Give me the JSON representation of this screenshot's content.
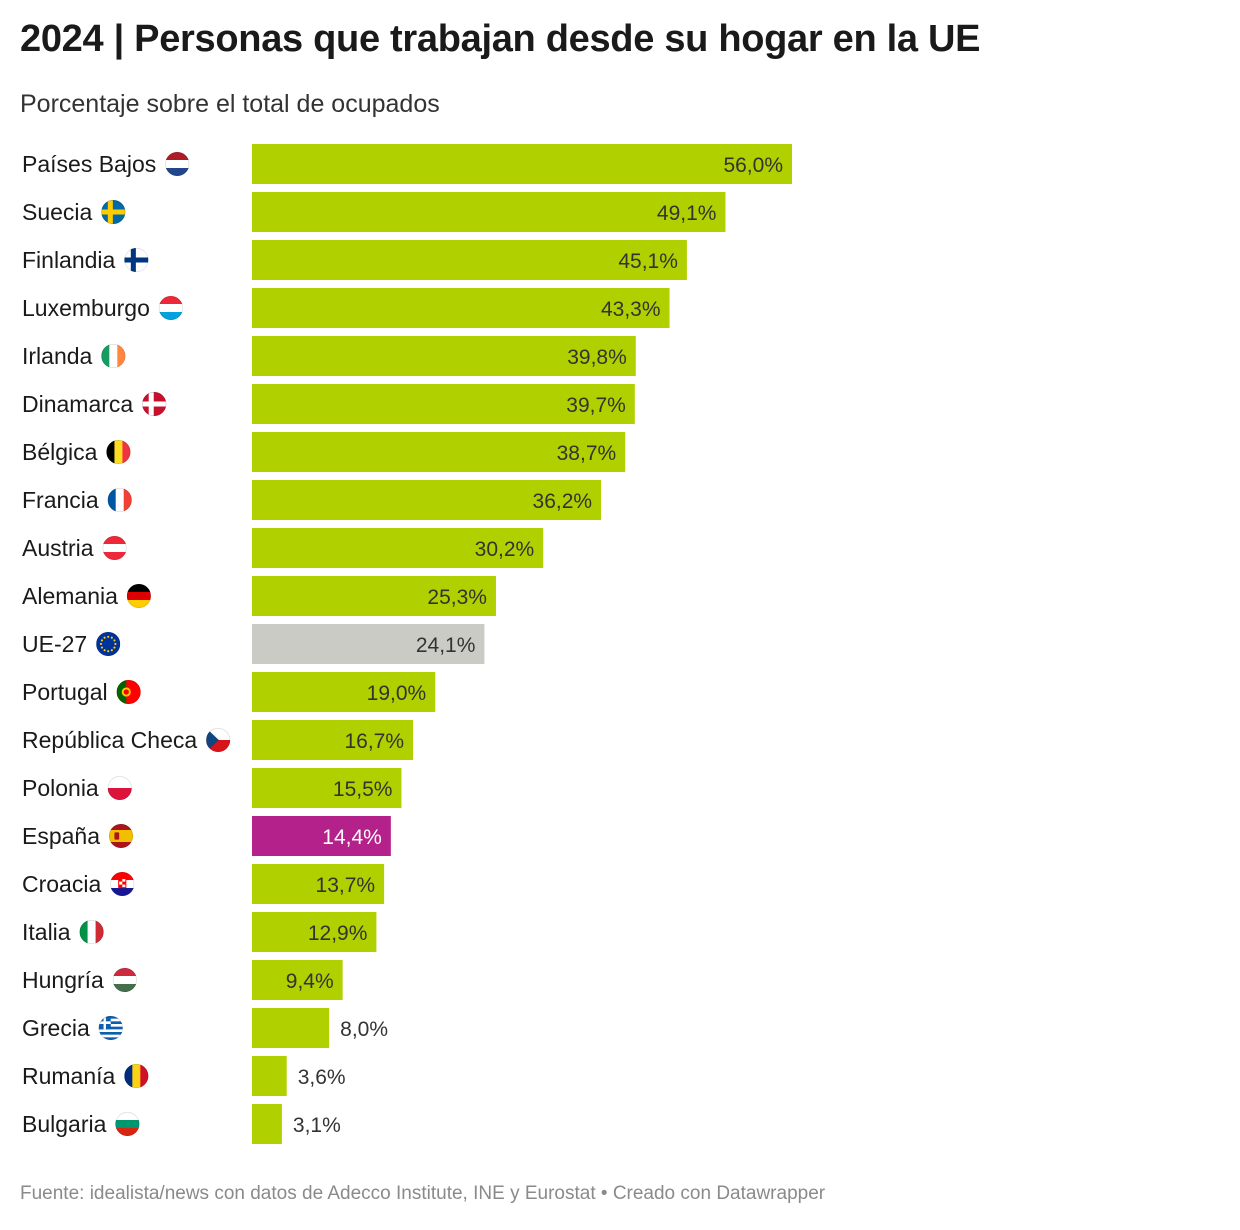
{
  "header": {
    "title": "2024 | Personas que trabajan desde su hogar en la UE",
    "subtitle": "Porcentaje sobre el total de ocupados"
  },
  "footer": {
    "source": "Fuente: idealista/news con datos de Adecco Institute, INE y Eurostat • Creado con Datawrapper"
  },
  "colors": {
    "default_bar": "#b0d000",
    "average_bar": "#cbcbc6",
    "highlight_bar": "#b5218a",
    "value_text": "#333333",
    "highlight_value_text": "#ffffff"
  },
  "chart_data": {
    "type": "bar",
    "orientation": "horizontal",
    "title": "2024 | Personas que trabajan desde su hogar en la UE",
    "subtitle": "Porcentaje sobre el total de ocupados",
    "xlim": [
      0,
      56
    ],
    "grid": false,
    "legend": "none",
    "categories": [
      "Países Bajos",
      "Suecia",
      "Finlandia",
      "Luxemburgo",
      "Irlanda",
      "Dinamarca",
      "Bélgica",
      "Francia",
      "Austria",
      "Alemania",
      "UE-27",
      "Portugal",
      "República Checa",
      "Polonia",
      "España",
      "Croacia",
      "Italia",
      "Hungría",
      "Grecia",
      "Rumanía",
      "Bulgaria"
    ],
    "values": [
      56.0,
      49.1,
      45.1,
      43.3,
      39.8,
      39.7,
      38.7,
      36.2,
      30.2,
      25.3,
      24.1,
      19.0,
      16.7,
      15.5,
      14.4,
      13.7,
      12.9,
      9.4,
      8.0,
      3.6,
      3.1
    ],
    "value_labels": [
      "56,0%",
      "49,1%",
      "45,1%",
      "43,3%",
      "39,8%",
      "39,7%",
      "38,7%",
      "36,2%",
      "30,2%",
      "25,3%",
      "24,1%",
      "19,0%",
      "16,7%",
      "15,5%",
      "14,4%",
      "13,7%",
      "12,9%",
      "9,4%",
      "8,0%",
      "3,6%",
      "3,1%"
    ],
    "flags": [
      "nl-flag-icon",
      "se-flag-icon",
      "fi-flag-icon",
      "lu-flag-icon",
      "ie-flag-icon",
      "dk-flag-icon",
      "be-flag-icon",
      "fr-flag-icon",
      "at-flag-icon",
      "de-flag-icon",
      "eu-flag-icon",
      "pt-flag-icon",
      "cz-flag-icon",
      "pl-flag-icon",
      "es-flag-icon",
      "hr-flag-icon",
      "it-flag-icon",
      "hu-flag-icon",
      "gr-flag-icon",
      "ro-flag-icon",
      "bg-flag-icon"
    ],
    "average_category": "UE-27",
    "highlight_category": "España"
  }
}
